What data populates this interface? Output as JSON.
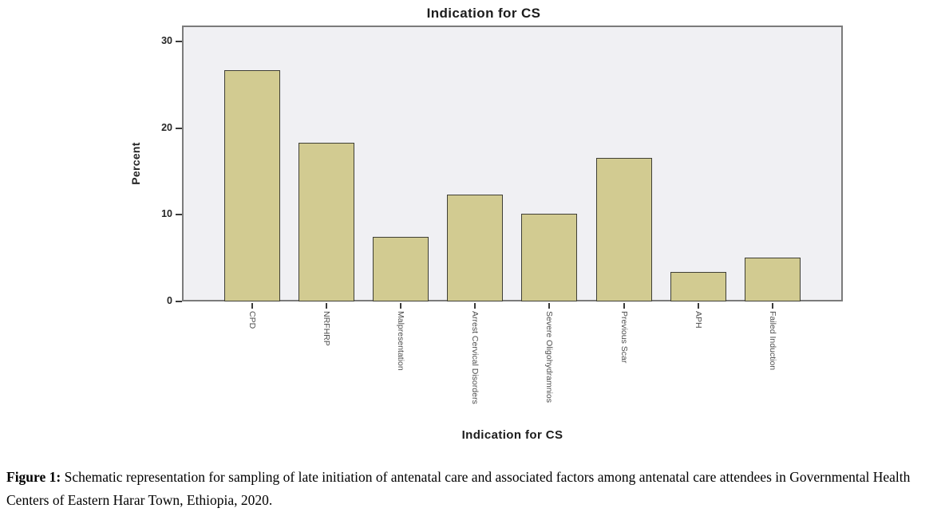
{
  "figure": {
    "title": "Indication for CS",
    "y_axis_label": "Percent",
    "x_axis_title": "Indication for CS"
  },
  "chart_data": {
    "type": "bar",
    "title": "Indication for CS",
    "xlabel": "Indication for CS",
    "ylabel": "Percent",
    "categories": [
      "CPD",
      "NRFHRP",
      "Malpresentation",
      "Arrest Cervical Disorders",
      "Severe Oligohydramnios",
      "Previous Scar",
      "APH",
      "Failed Induction"
    ],
    "values": [
      26.7,
      18.3,
      7.5,
      12.3,
      10.1,
      16.6,
      3.4,
      5.1
    ],
    "ylim": [
      0,
      30
    ],
    "yticks": [
      0,
      10,
      20,
      30
    ],
    "grid": false,
    "legend": null,
    "bar_color": "#d2cb91",
    "bar_border_color": "#3f3f35",
    "plot_background": "#f0f0f3"
  },
  "caption": {
    "label": "Figure 1:",
    "text": "Schematic representation for sampling of late initiation of antenatal care and associated factors among antenatal care attendees in Governmental Health Centers of Eastern Harar Town, Ethiopia, 2020."
  }
}
